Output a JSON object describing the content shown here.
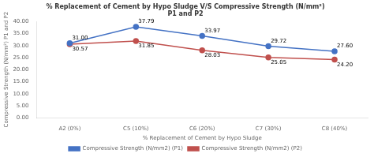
{
  "chart_data": {
    "type": "line",
    "title": "% Replacement of Cement by Hypo Sludge V/S Compressive Strength (N/mm²)\nP1 and P2",
    "x_label": "% Replacement of Cement by Hypo Sludge",
    "y_label": "Compressive Strength (N/mm²) P1 and P2",
    "categories": [
      "A2 (0%)",
      "C5 (10%)",
      "C6 (20%)",
      "C7 (30%)",
      "C8 (40%)"
    ],
    "series": [
      {
        "name": "Compressive Strength (N/mm2) (P1)",
        "color": "#4472C4",
        "marker": "circle",
        "values": [
          31.0,
          37.79,
          33.97,
          29.72,
          27.6
        ],
        "value_labels": [
          "31.00",
          "37.79",
          "33.97",
          "29.72",
          "27.60"
        ]
      },
      {
        "name": "Compressive Strength (N/mm2) (P2)",
        "color": "#C0504D",
        "marker": "square",
        "values": [
          30.57,
          31.85,
          28.03,
          25.05,
          24.2
        ],
        "value_labels": [
          "30.57",
          "31.85",
          "28.03",
          "25.05",
          "24.20"
        ]
      }
    ],
    "ylim": [
      0,
      40
    ],
    "yticks": [
      {
        "value": 0,
        "label": "0.00"
      },
      {
        "value": 5,
        "label": "5.00"
      },
      {
        "value": 10,
        "label": "10.00"
      },
      {
        "value": 15,
        "label": "15.00"
      },
      {
        "value": 20,
        "label": "20.00"
      },
      {
        "value": 25,
        "label": "25.00"
      },
      {
        "value": 30,
        "label": "30.00"
      },
      {
        "value": 35,
        "label": "35.00"
      },
      {
        "value": 40,
        "label": "40.00"
      }
    ],
    "grid": false,
    "legend": "bottom",
    "data_labels": true
  }
}
